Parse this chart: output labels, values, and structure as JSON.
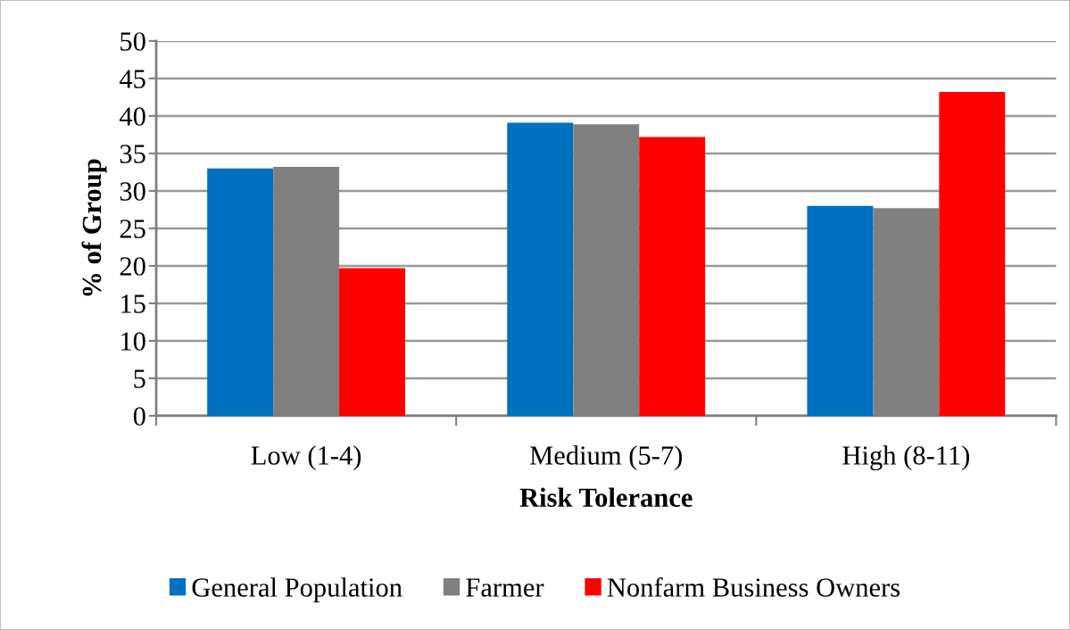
{
  "chart_data": {
    "type": "bar",
    "xlabel": "Risk Tolerance",
    "ylabel": "% of Group",
    "categories": [
      "Low (1-4)",
      "Medium (5-7)",
      "High (8-11)"
    ],
    "series": [
      {
        "name": "General Population",
        "color": "#0070c0",
        "values": [
          33.0,
          39.1,
          28.0
        ]
      },
      {
        "name": "Farmer",
        "color": "#808080",
        "values": [
          33.2,
          38.9,
          27.7
        ]
      },
      {
        "name": "Nonfarm Business Owners",
        "color": "#ff0000",
        "values": [
          19.7,
          37.2,
          43.2
        ]
      }
    ],
    "ylim": [
      0,
      50
    ],
    "yticks": [
      0,
      5,
      10,
      15,
      20,
      25,
      30,
      35,
      40,
      45,
      50
    ],
    "grid": "y",
    "legend": "bottom"
  }
}
